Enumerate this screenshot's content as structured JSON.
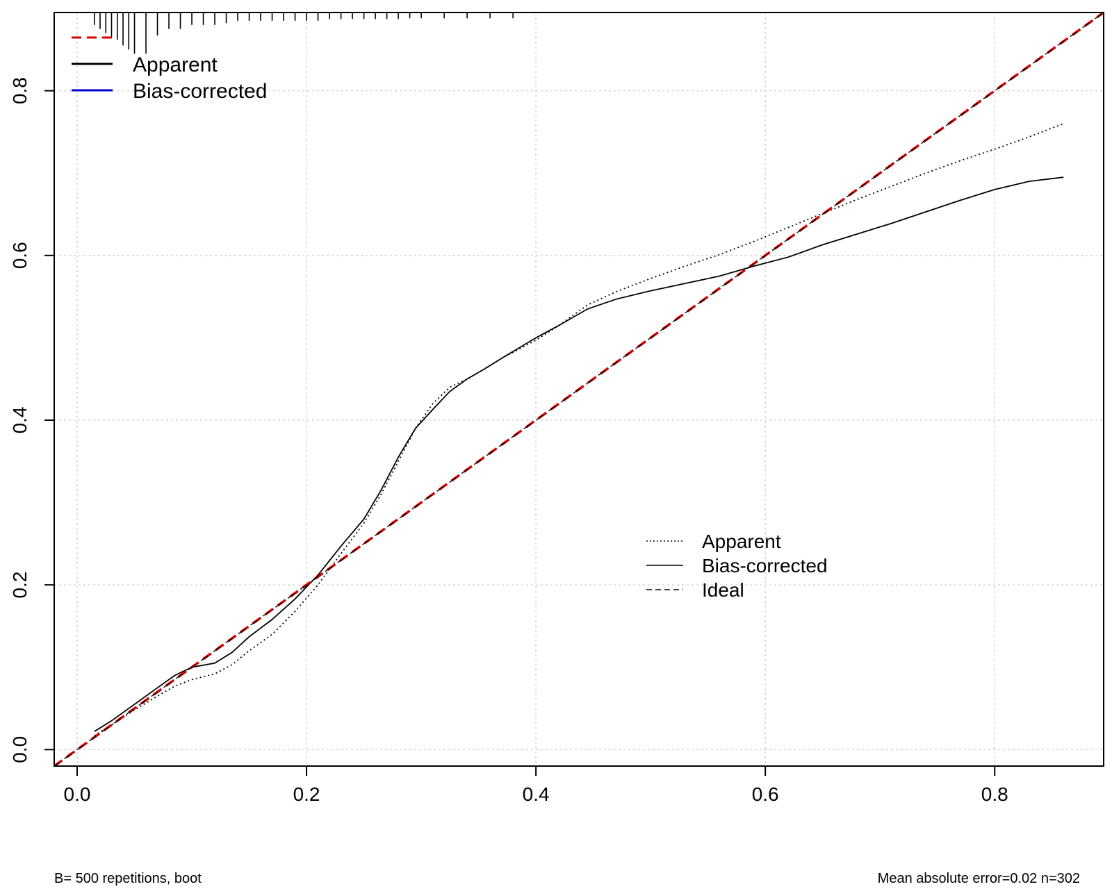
{
  "chart_data": {
    "type": "line",
    "title": "",
    "xlabel": "",
    "ylabel": "",
    "xlim": [
      -0.02,
      0.895
    ],
    "ylim": [
      -0.02,
      0.895
    ],
    "x_ticks": [
      "0.0",
      "0.2",
      "0.4",
      "0.6",
      "0.8"
    ],
    "y_ticks": [
      "0.0",
      "0.2",
      "0.4",
      "0.6",
      "0.8"
    ],
    "grid": true,
    "series": [
      {
        "name": "Apparent",
        "style": "dotted",
        "color": "#000000",
        "x": [
          0.015,
          0.03,
          0.05,
          0.07,
          0.085,
          0.1,
          0.12,
          0.135,
          0.15,
          0.17,
          0.19,
          0.21,
          0.23,
          0.25,
          0.265,
          0.28,
          0.295,
          0.31,
          0.325,
          0.34,
          0.355,
          0.37,
          0.4,
          0.42,
          0.445,
          0.47,
          0.5,
          0.53,
          0.56,
          0.59,
          0.62,
          0.65,
          0.68,
          0.71,
          0.74,
          0.77,
          0.8,
          0.83,
          0.86
        ],
        "y": [
          0.017,
          0.03,
          0.048,
          0.065,
          0.077,
          0.085,
          0.092,
          0.103,
          0.12,
          0.14,
          0.168,
          0.2,
          0.238,
          0.275,
          0.31,
          0.35,
          0.39,
          0.42,
          0.44,
          0.45,
          0.462,
          0.475,
          0.497,
          0.515,
          0.54,
          0.556,
          0.572,
          0.587,
          0.601,
          0.617,
          0.634,
          0.651,
          0.668,
          0.684,
          0.7,
          0.715,
          0.729,
          0.744,
          0.76
        ]
      },
      {
        "name": "Bias-corrected",
        "style": "solid",
        "color": "#000000",
        "x": [
          0.015,
          0.03,
          0.05,
          0.07,
          0.085,
          0.1,
          0.12,
          0.135,
          0.15,
          0.17,
          0.19,
          0.21,
          0.23,
          0.25,
          0.265,
          0.28,
          0.295,
          0.31,
          0.325,
          0.34,
          0.355,
          0.37,
          0.4,
          0.42,
          0.445,
          0.47,
          0.5,
          0.53,
          0.56,
          0.59,
          0.62,
          0.65,
          0.68,
          0.71,
          0.74,
          0.77,
          0.8,
          0.83,
          0.86
        ],
        "y": [
          0.022,
          0.035,
          0.055,
          0.075,
          0.09,
          0.1,
          0.105,
          0.118,
          0.137,
          0.158,
          0.183,
          0.212,
          0.247,
          0.28,
          0.315,
          0.355,
          0.39,
          0.413,
          0.435,
          0.45,
          0.462,
          0.475,
          0.5,
          0.515,
          0.535,
          0.547,
          0.557,
          0.566,
          0.575,
          0.587,
          0.598,
          0.613,
          0.626,
          0.639,
          0.653,
          0.667,
          0.68,
          0.69,
          0.695
        ]
      },
      {
        "name": "Ideal",
        "style": "dashed",
        "color": "#d40000",
        "x": [
          -0.02,
          0.895
        ],
        "y": [
          -0.02,
          0.895
        ]
      }
    ],
    "rug_ticks_x": [
      0.015,
      0.02,
      0.025,
      0.03,
      0.035,
      0.04,
      0.045,
      0.05,
      0.06,
      0.07,
      0.08,
      0.09,
      0.1,
      0.11,
      0.12,
      0.13,
      0.14,
      0.15,
      0.16,
      0.17,
      0.18,
      0.19,
      0.2,
      0.21,
      0.22,
      0.23,
      0.24,
      0.25,
      0.26,
      0.27,
      0.28,
      0.29,
      0.3,
      0.32,
      0.34,
      0.36,
      0.38
    ],
    "rug_ticks_len": [
      0.015,
      0.02,
      0.025,
      0.03,
      0.033,
      0.04,
      0.045,
      0.05,
      0.05,
      0.028,
      0.02,
      0.02,
      0.015,
      0.015,
      0.015,
      0.013,
      0.01,
      0.01,
      0.01,
      0.01,
      0.01,
      0.01,
      0.01,
      0.01,
      0.008,
      0.008,
      0.008,
      0.008,
      0.008,
      0.008,
      0.008,
      0.007,
      0.007,
      0.007,
      0.007,
      0.007,
      0.007
    ]
  },
  "legend_top": {
    "placement": "top-left",
    "items": [
      {
        "label": "",
        "color": "#d40000",
        "style": "dashed"
      },
      {
        "label": "Apparent",
        "color": "#000000",
        "style": "solid"
      },
      {
        "label": "Bias-corrected",
        "color": "#0000cc",
        "style": "solid"
      }
    ]
  },
  "legend_bottom": {
    "placement": "center-right",
    "items": [
      {
        "label": "Apparent",
        "style": "dotted"
      },
      {
        "label": "Bias-corrected",
        "style": "solid"
      },
      {
        "label": "Ideal",
        "style": "dashed"
      }
    ]
  },
  "footer": {
    "left": "B= 500 repetitions, boot",
    "right": "Mean absolute error=0.02 n=302"
  }
}
